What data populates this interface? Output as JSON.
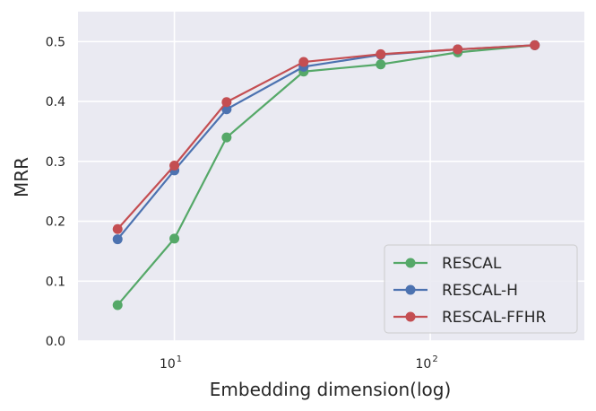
{
  "chart_data": {
    "type": "line",
    "title": "",
    "xlabel": "Embedding dimension(log)",
    "ylabel": "MRR",
    "xscale": "log",
    "xlim": [
      4.2,
      400
    ],
    "ylim": [
      0.0,
      0.55
    ],
    "grid": true,
    "legend_position": "bottom-right",
    "x": [
      6,
      10,
      16,
      32,
      64,
      128,
      256
    ],
    "x_ticks": [
      {
        "value": 10,
        "base": "10",
        "exp": "1"
      },
      {
        "value": 100,
        "base": "10",
        "exp": "2"
      }
    ],
    "y_ticks": [
      {
        "value": 0.0,
        "label": "0.0"
      },
      {
        "value": 0.1,
        "label": "0.1"
      },
      {
        "value": 0.2,
        "label": "0.2"
      },
      {
        "value": 0.3,
        "label": "0.3"
      },
      {
        "value": 0.4,
        "label": "0.4"
      },
      {
        "value": 0.5,
        "label": "0.5"
      }
    ],
    "series": [
      {
        "name": "RESCAL",
        "color": "#55a868",
        "values": [
          0.06,
          0.171,
          0.34,
          0.45,
          0.462,
          0.482,
          0.494
        ]
      },
      {
        "name": "RESCAL-H",
        "color": "#4c72b0",
        "values": [
          0.17,
          0.285,
          0.387,
          0.458,
          0.478,
          0.487,
          0.494
        ]
      },
      {
        "name": "RESCAL-FFHR",
        "color": "#c44e52",
        "values": [
          0.187,
          0.293,
          0.399,
          0.466,
          0.479,
          0.487,
          0.494
        ]
      }
    ],
    "plot_background": "#eaeaf2",
    "grid_color": "#ffffff"
  }
}
